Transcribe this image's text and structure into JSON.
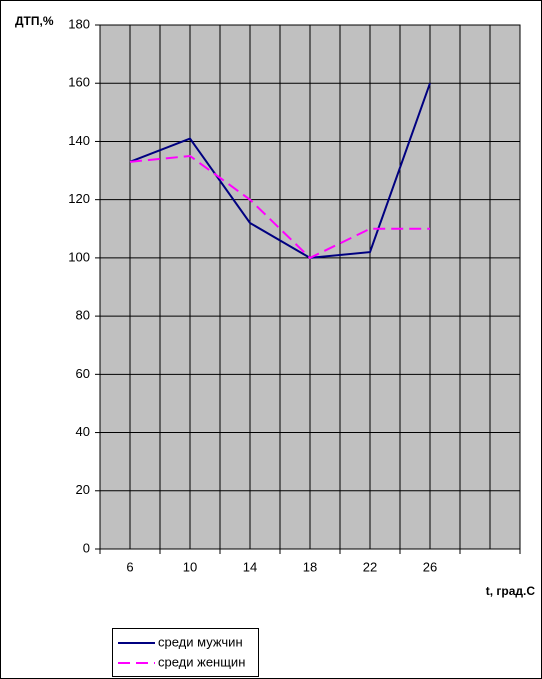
{
  "chart_data": {
    "type": "line",
    "y_label": "ДТП,%",
    "x_label": "t, град.С",
    "categories": [
      "6",
      "10",
      "14",
      "18",
      "22",
      "26",
      null
    ],
    "series": [
      {
        "name": "среди мужчин",
        "color": "#000080",
        "dash": "solid",
        "values": [
          133,
          141,
          112,
          100,
          102,
          160,
          null
        ]
      },
      {
        "name": "среди женщин",
        "color": "#ff00ff",
        "dash": "dashed",
        "values": [
          133,
          135,
          120,
          100,
          110,
          110,
          null
        ]
      }
    ],
    "ylim": [
      0,
      180
    ],
    "yticks": [
      0,
      20,
      40,
      60,
      80,
      100,
      120,
      140,
      160,
      180
    ],
    "grid": true,
    "plot_background": "#c0c0c0"
  }
}
